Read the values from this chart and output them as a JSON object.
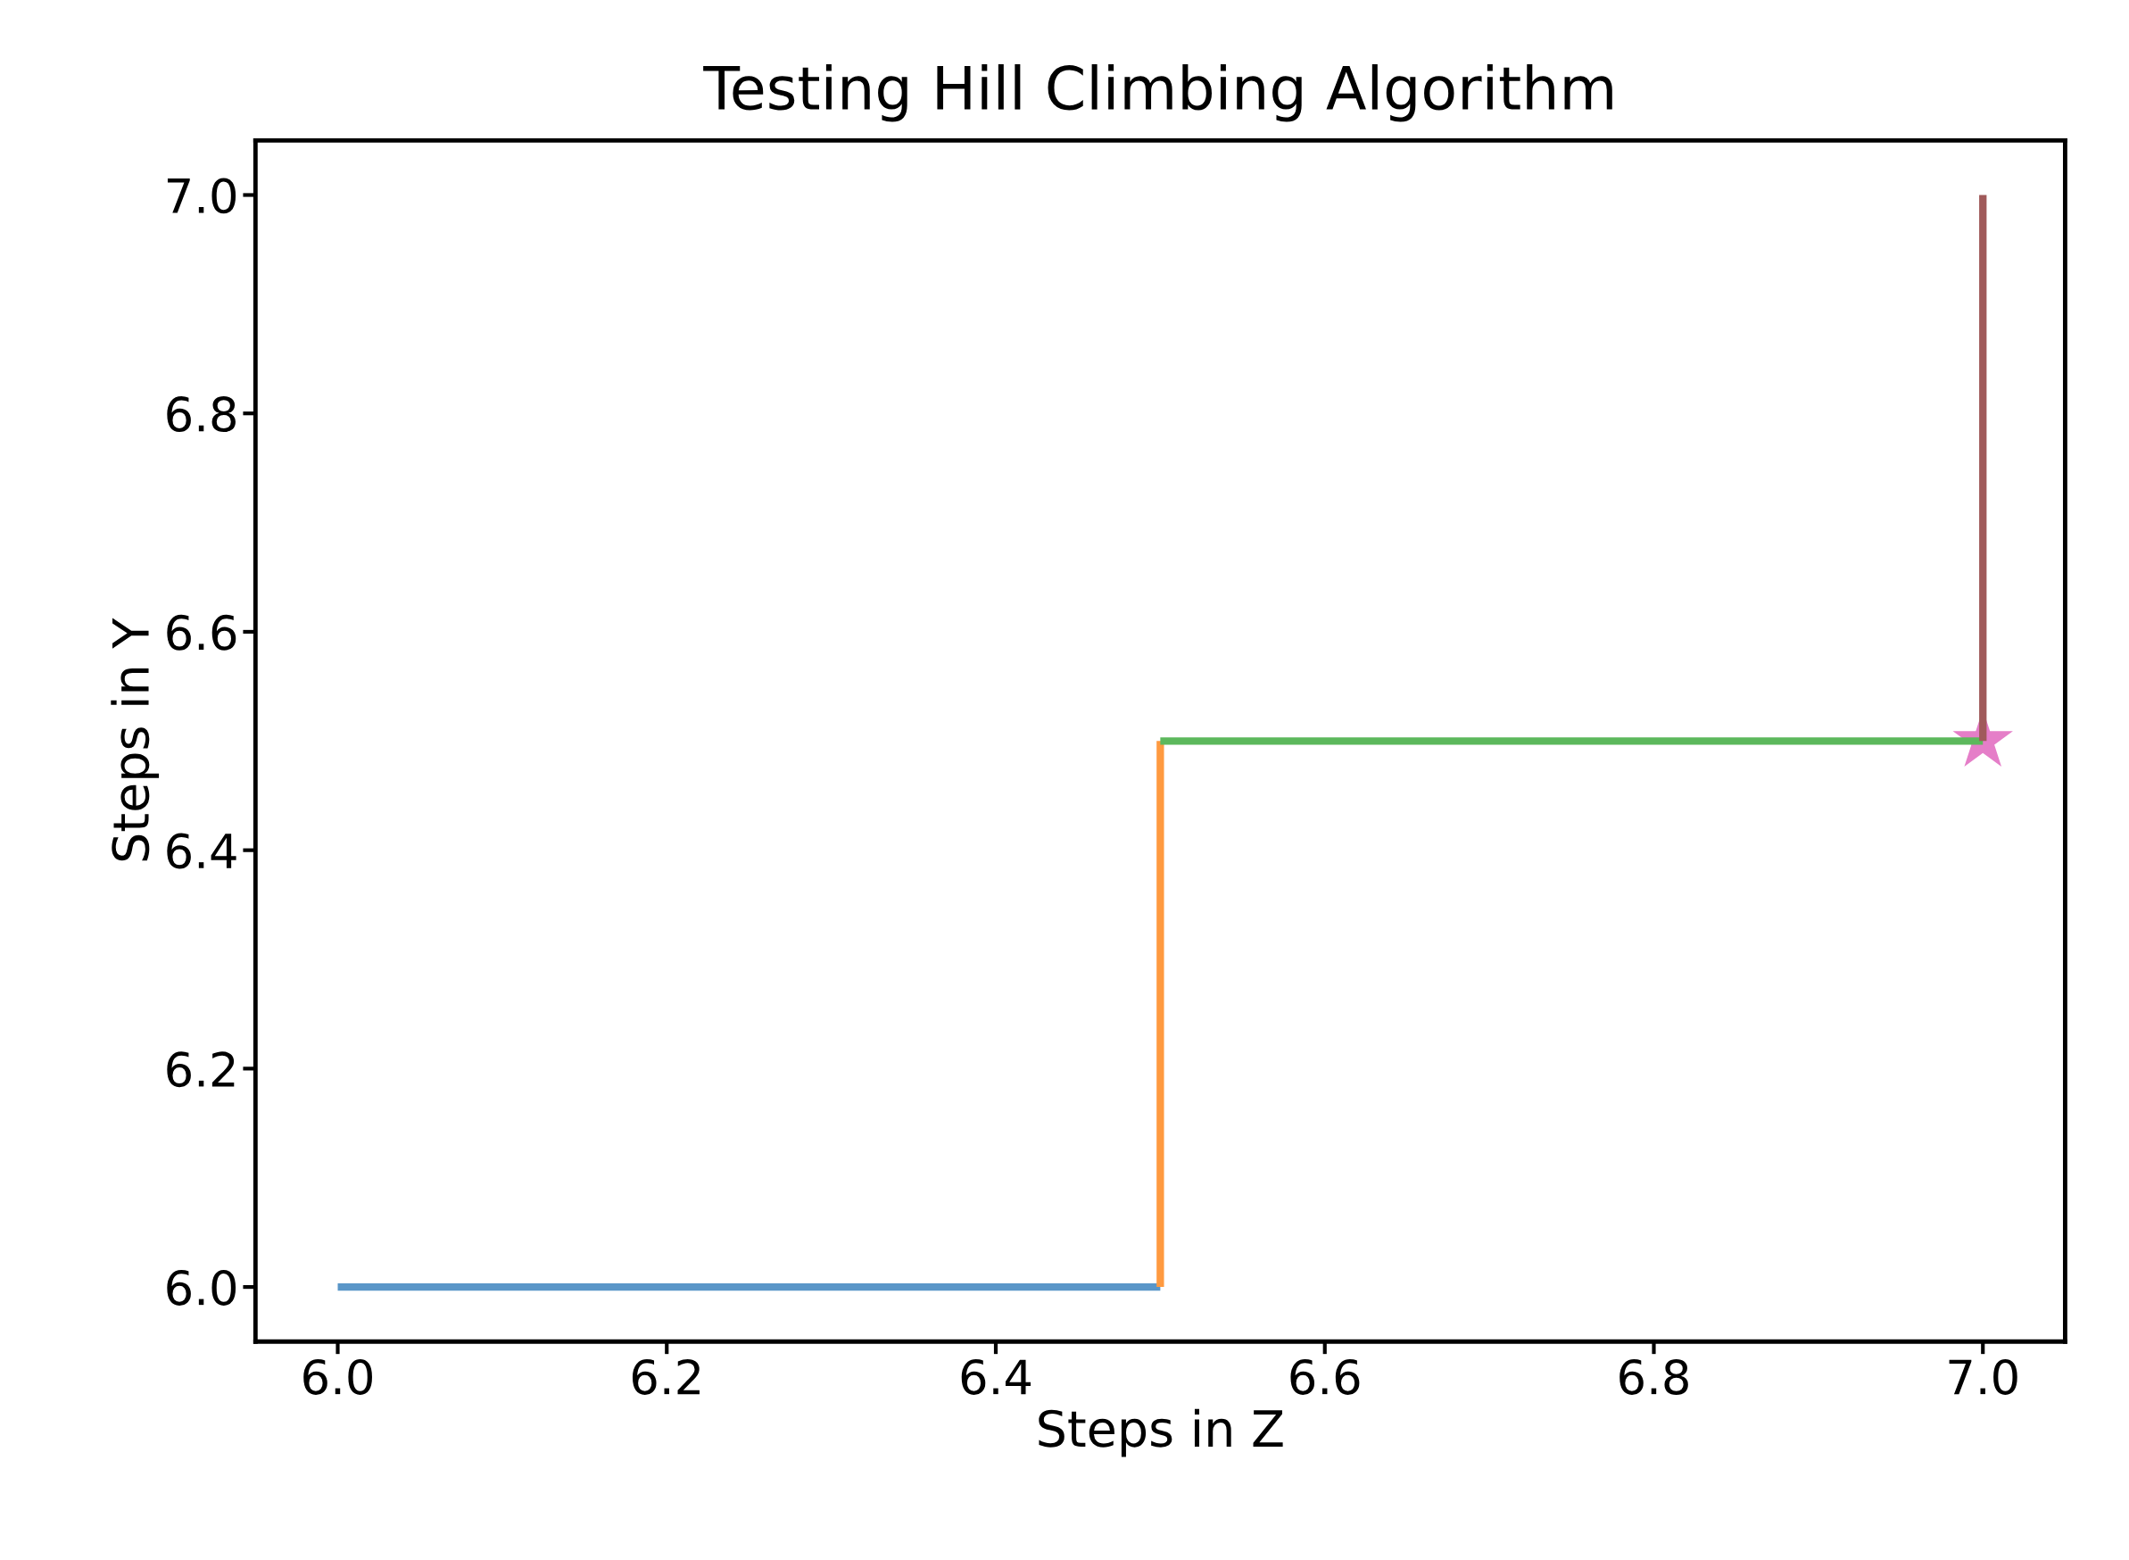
{
  "chart_data": {
    "type": "line",
    "title": "Testing Hill Climbing Algorithm",
    "xlabel": "Steps in Z",
    "ylabel": "Steps in Y",
    "series": [
      {
        "color": "#5a96c8",
        "x": [
          6.0,
          6.5
        ],
        "values": [
          6.0,
          6.0
        ]
      },
      {
        "color": "#ff9a40",
        "x": [
          6.5,
          6.5
        ],
        "values": [
          6.0,
          6.5
        ]
      },
      {
        "color": "#5cb85c",
        "x": [
          6.5,
          7.0
        ],
        "values": [
          6.5,
          6.5
        ]
      },
      {
        "color": "#a05a5a",
        "x": [
          7.0,
          7.0
        ],
        "values": [
          6.5,
          7.0
        ]
      },
      {
        "type": "scatter",
        "color": "#e57ec8",
        "marker": "star",
        "x": [
          7.0
        ],
        "values": [
          6.5
        ]
      }
    ],
    "xlim": [
      5.95,
      7.05
    ],
    "ylim": [
      5.95,
      7.05
    ],
    "xticks": [
      {
        "value": 6.0,
        "label": "6.0"
      },
      {
        "value": 6.2,
        "label": "6.2"
      },
      {
        "value": 6.4,
        "label": "6.4"
      },
      {
        "value": 6.6,
        "label": "6.6"
      },
      {
        "value": 6.8,
        "label": "6.8"
      },
      {
        "value": 7.0,
        "label": "7.0"
      }
    ],
    "yticks": [
      {
        "value": 6.0,
        "label": "6.0"
      },
      {
        "value": 6.2,
        "label": "6.2"
      },
      {
        "value": 6.4,
        "label": "6.4"
      },
      {
        "value": 6.6,
        "label": "6.6"
      },
      {
        "value": 6.8,
        "label": "6.8"
      },
      {
        "value": 7.0,
        "label": "7.0"
      }
    ]
  }
}
